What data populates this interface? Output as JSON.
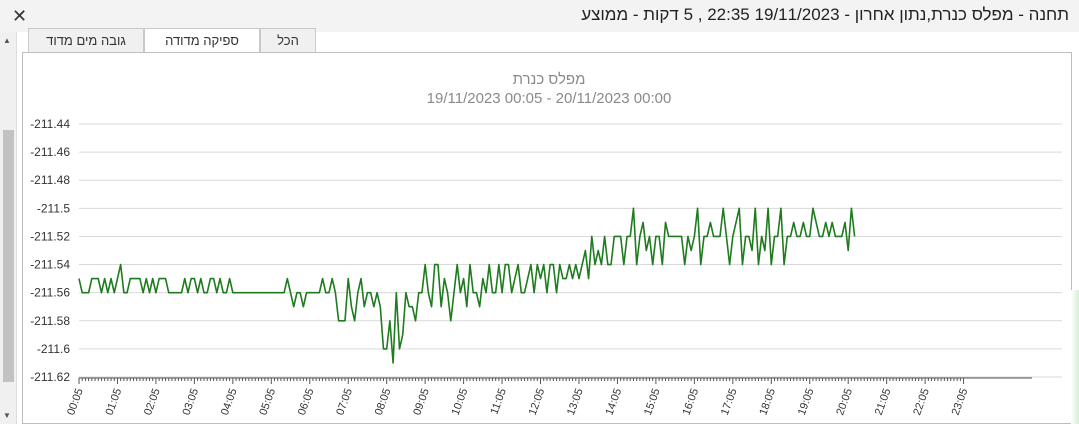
{
  "window": {
    "title": "תחנה - מפלס כנרת,נתון אחרון - 19/11/2023 22:35 , 5 דקות - ממוצע",
    "close_icon": "close-icon"
  },
  "tabs": [
    {
      "label": "גובה מים מדוד",
      "active": false
    },
    {
      "label": "ספיקה מדודה",
      "active": true
    },
    {
      "label": "הכל",
      "active": false
    }
  ],
  "colors": {
    "series": "#1e7b1e",
    "grid": "#d9d9d9",
    "title": "#8a8a8a"
  },
  "chart_data": {
    "type": "line",
    "title": "מפלס כנרת",
    "subtitle": "19/11/2023 00:05  -  20/11/2023 00:00",
    "xlabel": "",
    "ylabel": "",
    "ylim": [
      -211.62,
      -211.44
    ],
    "y_ticks": [
      -211.44,
      -211.46,
      -211.48,
      -211.5,
      -211.52,
      -211.54,
      -211.56,
      -211.58,
      -211.6,
      -211.62
    ],
    "y_tick_labels": [
      "-211.44",
      "-211.46",
      "-211.48",
      "-211.5",
      "-211.52",
      "-211.54",
      "-211.56",
      "-211.58",
      "-211.6",
      "-211.62"
    ],
    "x_ticks": [
      "00:05",
      "01:05",
      "02:05",
      "03:05",
      "04:05",
      "05:05",
      "06:05",
      "07:05",
      "08:05",
      "09:05",
      "10:05",
      "11:05",
      "12:05",
      "13:05",
      "14:05",
      "15:05",
      "16:05",
      "17:05",
      "18:05",
      "19:05",
      "20:05",
      "21:05",
      "22:05",
      "23:05"
    ],
    "x_first": "00:05",
    "x_step_minutes": 5,
    "grid": true,
    "legend": "none",
    "series": [
      {
        "values": [
          -211.55,
          -211.56,
          -211.56,
          -211.56,
          -211.55,
          -211.55,
          -211.55,
          -211.56,
          -211.55,
          -211.56,
          -211.55,
          -211.56,
          -211.55,
          -211.54,
          -211.56,
          -211.56,
          -211.55,
          -211.55,
          -211.55,
          -211.55,
          -211.56,
          -211.55,
          -211.56,
          -211.55,
          -211.56,
          -211.55,
          -211.55,
          -211.55,
          -211.56,
          -211.56,
          -211.56,
          -211.56,
          -211.56,
          -211.55,
          -211.56,
          -211.55,
          -211.55,
          -211.56,
          -211.55,
          -211.56,
          -211.56,
          -211.55,
          -211.55,
          -211.56,
          -211.55,
          -211.56,
          -211.56,
          -211.55,
          -211.56,
          -211.56,
          -211.56,
          -211.56,
          -211.56,
          -211.56,
          -211.56,
          -211.56,
          -211.56,
          -211.56,
          -211.56,
          -211.56,
          -211.56,
          -211.56,
          -211.56,
          -211.56,
          -211.56,
          -211.55,
          -211.56,
          -211.57,
          -211.56,
          -211.56,
          -211.57,
          -211.56,
          -211.56,
          -211.56,
          -211.56,
          -211.56,
          -211.55,
          -211.56,
          -211.56,
          -211.55,
          -211.56,
          -211.58,
          -211.58,
          -211.58,
          -211.55,
          -211.57,
          -211.58,
          -211.56,
          -211.55,
          -211.57,
          -211.56,
          -211.56,
          -211.57,
          -211.56,
          -211.57,
          -211.6,
          -211.6,
          -211.58,
          -211.61,
          -211.56,
          -211.6,
          -211.59,
          -211.56,
          -211.57,
          -211.57,
          -211.58,
          -211.56,
          -211.56,
          -211.54,
          -211.56,
          -211.57,
          -211.54,
          -211.54,
          -211.57,
          -211.55,
          -211.56,
          -211.58,
          -211.56,
          -211.54,
          -211.56,
          -211.55,
          -211.57,
          -211.54,
          -211.56,
          -211.56,
          -211.57,
          -211.55,
          -211.56,
          -211.54,
          -211.56,
          -211.56,
          -211.54,
          -211.56,
          -211.54,
          -211.54,
          -211.56,
          -211.55,
          -211.54,
          -211.56,
          -211.56,
          -211.55,
          -211.54,
          -211.56,
          -211.54,
          -211.55,
          -211.54,
          -211.56,
          -211.54,
          -211.54,
          -211.56,
          -211.54,
          -211.55,
          -211.55,
          -211.54,
          -211.55,
          -211.54,
          -211.55,
          -211.54,
          -211.53,
          -211.55,
          -211.52,
          -211.54,
          -211.53,
          -211.54,
          -211.52,
          -211.54,
          -211.54,
          -211.52,
          -211.52,
          -211.52,
          -211.54,
          -211.52,
          -211.52,
          -211.5,
          -211.54,
          -211.52,
          -211.51,
          -211.53,
          -211.52,
          -211.54,
          -211.52,
          -211.52,
          -211.54,
          -211.51,
          -211.52,
          -211.52,
          -211.52,
          -211.52,
          -211.52,
          -211.54,
          -211.52,
          -211.53,
          -211.52,
          -211.5,
          -211.54,
          -211.52,
          -211.52,
          -211.51,
          -211.52,
          -211.52,
          -211.52,
          -211.5,
          -211.52,
          -211.54,
          -211.52,
          -211.51,
          -211.5,
          -211.54,
          -211.52,
          -211.52,
          -211.53,
          -211.5,
          -211.54,
          -211.52,
          -211.53,
          -211.5,
          -211.54,
          -211.52,
          -211.52,
          -211.5,
          -211.54,
          -211.52,
          -211.52,
          -211.51,
          -211.52,
          -211.52,
          -211.51,
          -211.52,
          -211.52,
          -211.5,
          -211.51,
          -211.52,
          -211.52,
          -211.51,
          -211.52,
          -211.51,
          -211.52,
          -211.52,
          -211.52,
          -211.51,
          -211.53,
          -211.5,
          -211.52
        ]
      }
    ]
  }
}
